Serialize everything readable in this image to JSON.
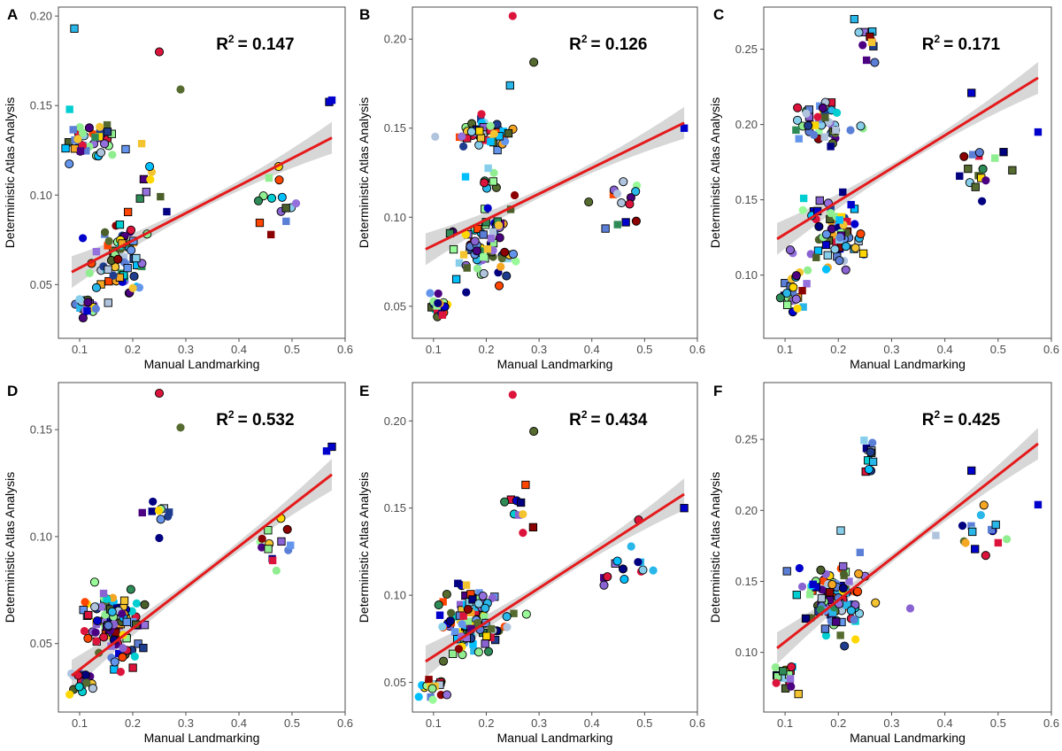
{
  "figure": {
    "colors": {
      "regression_line": "#e41a1c",
      "confidence_band": "#d3d3d3",
      "point_palette": [
        "#29b6e8",
        "#00bfff",
        "#1f3d8f",
        "#000080",
        "#0000cd",
        "#5b7fd6",
        "#8a63d2",
        "#9370db",
        "#b0c4de",
        "#90ee90",
        "#98fb98",
        "#556b2f",
        "#4b5f2a",
        "#ffd700",
        "#f4c430",
        "#f5a623",
        "#ff4500",
        "#dc143c",
        "#8b0000",
        "#4b0082",
        "#00ced1",
        "#6495ed",
        "#87ceeb",
        "#2e8b57"
      ]
    }
  },
  "chart_data": [
    {
      "type": "scatter",
      "panel": "A",
      "xlabel": "Manual Landmarking",
      "ylabel": "Deterministic Atlas Analysis",
      "xlim": [
        0.06,
        0.6
      ],
      "ylim": [
        0.02,
        0.205
      ],
      "x_ticks": [
        0.1,
        0.2,
        0.3,
        0.4,
        0.5,
        0.6
      ],
      "x_tick_labels": [
        "0.1",
        "0.2",
        "0.3",
        "0.4",
        "0.5",
        "0.6"
      ],
      "y_ticks": [
        0.05,
        0.1,
        0.15,
        0.2
      ],
      "y_tick_labels": [
        "0.05",
        "0.10",
        "0.15",
        "0.20"
      ],
      "r2_base": "R",
      "r2_sup": "2",
      "r2_value": "= 0.147",
      "fit": {
        "x0": 0.085,
        "y0": 0.057,
        "x1": 0.575,
        "y1": 0.132
      },
      "clusters": [
        {
          "cx": 0.12,
          "cy": 0.13,
          "sx": 0.04,
          "sy": 0.01,
          "n": 40,
          "ratio_x": 1.0,
          "ratio_y": 1.0
        },
        {
          "cx": 0.18,
          "cy": 0.065,
          "sx": 0.05,
          "sy": 0.018,
          "n": 70
        },
        {
          "cx": 0.11,
          "cy": 0.038,
          "sx": 0.02,
          "sy": 0.006,
          "n": 22
        },
        {
          "cx": 0.46,
          "cy": 0.095,
          "sx": 0.04,
          "sy": 0.015,
          "n": 14
        },
        {
          "cx": 0.22,
          "cy": 0.11,
          "sx": 0.03,
          "sy": 0.02,
          "n": 10
        }
      ],
      "outliers": [
        [
          0.09,
          0.193,
          "#29b6e8",
          "square"
        ],
        [
          0.25,
          0.18,
          "#dc143c",
          "circle"
        ],
        [
          0.29,
          0.159,
          "#556b2f",
          "circle"
        ],
        [
          0.57,
          0.152,
          "#0000cd",
          "square"
        ],
        [
          0.575,
          0.153,
          "#0000cd",
          "square"
        ]
      ]
    },
    {
      "type": "scatter",
      "panel": "B",
      "xlabel": "Manual Landmarking",
      "ylabel": "Deterministic Atlas Analysis",
      "xlim": [
        0.06,
        0.6
      ],
      "ylim": [
        0.032,
        0.218
      ],
      "x_ticks": [
        0.1,
        0.2,
        0.3,
        0.4,
        0.5,
        0.6
      ],
      "x_tick_labels": [
        "0.1",
        "0.2",
        "0.3",
        "0.4",
        "0.5",
        "0.6"
      ],
      "y_ticks": [
        0.05,
        0.1,
        0.15,
        0.2
      ],
      "y_tick_labels": [
        "0.05",
        "0.10",
        "0.15",
        "0.20"
      ],
      "r2_base": "R",
      "r2_sup": "2",
      "r2_value": "= 0.126",
      "fit": {
        "x0": 0.085,
        "y0": 0.082,
        "x1": 0.575,
        "y1": 0.153
      },
      "clusters": [
        {
          "cx": 0.19,
          "cy": 0.148,
          "sx": 0.05,
          "sy": 0.007,
          "n": 45
        },
        {
          "cx": 0.19,
          "cy": 0.085,
          "sx": 0.05,
          "sy": 0.018,
          "n": 70
        },
        {
          "cx": 0.11,
          "cy": 0.05,
          "sx": 0.02,
          "sy": 0.006,
          "n": 20
        },
        {
          "cx": 0.46,
          "cy": 0.11,
          "sx": 0.04,
          "sy": 0.015,
          "n": 14
        },
        {
          "cx": 0.22,
          "cy": 0.12,
          "sx": 0.03,
          "sy": 0.015,
          "n": 10
        }
      ],
      "outliers": [
        [
          0.25,
          0.213,
          "#dc143c",
          "circle"
        ],
        [
          0.245,
          0.174,
          "#29b6e8",
          "square"
        ],
        [
          0.29,
          0.187,
          "#556b2f",
          "circle"
        ],
        [
          0.575,
          0.15,
          "#0000cd",
          "square"
        ]
      ]
    },
    {
      "type": "scatter",
      "panel": "C",
      "xlabel": "Manual Landmarking",
      "ylabel": "Deterministic Atlas Analysis",
      "xlim": [
        0.06,
        0.6
      ],
      "ylim": [
        0.058,
        0.278
      ],
      "x_ticks": [
        0.1,
        0.2,
        0.3,
        0.4,
        0.5,
        0.6
      ],
      "x_tick_labels": [
        "0.1",
        "0.2",
        "0.3",
        "0.4",
        "0.5",
        "0.6"
      ],
      "y_ticks": [
        0.1,
        0.15,
        0.2,
        0.25
      ],
      "y_tick_labels": [
        "0.10",
        "0.15",
        "0.20",
        "0.25"
      ],
      "r2_base": "R",
      "r2_sup": "2",
      "r2_value": "= 0.171",
      "fit": {
        "x0": 0.085,
        "y0": 0.124,
        "x1": 0.575,
        "y1": 0.231
      },
      "clusters": [
        {
          "cx": 0.17,
          "cy": 0.2,
          "sx": 0.04,
          "sy": 0.012,
          "n": 45
        },
        {
          "cx": 0.19,
          "cy": 0.125,
          "sx": 0.05,
          "sy": 0.02,
          "n": 70
        },
        {
          "cx": 0.11,
          "cy": 0.085,
          "sx": 0.02,
          "sy": 0.01,
          "n": 20
        },
        {
          "cx": 0.46,
          "cy": 0.17,
          "sx": 0.05,
          "sy": 0.015,
          "n": 16
        },
        {
          "cx": 0.255,
          "cy": 0.25,
          "sx": 0.015,
          "sy": 0.012,
          "n": 10
        }
      ],
      "outliers": [
        [
          0.23,
          0.27,
          "#29b6e8",
          "square"
        ],
        [
          0.45,
          0.221,
          "#0000cd",
          "square"
        ],
        [
          0.575,
          0.195,
          "#0000cd",
          "square"
        ]
      ]
    },
    {
      "type": "scatter",
      "panel": "D",
      "xlabel": "Manual Landmarking",
      "ylabel": "Deterministic Atlas Analysis",
      "xlim": [
        0.06,
        0.6
      ],
      "ylim": [
        0.018,
        0.172
      ],
      "x_ticks": [
        0.1,
        0.2,
        0.3,
        0.4,
        0.5,
        0.6
      ],
      "x_tick_labels": [
        "0.1",
        "0.2",
        "0.3",
        "0.4",
        "0.5",
        "0.6"
      ],
      "y_ticks": [
        0.05,
        0.1,
        0.15
      ],
      "y_tick_labels": [
        "0.05",
        "0.10",
        "0.15"
      ],
      "r2_base": "R",
      "r2_sup": "2",
      "r2_value": "= 0.532",
      "fit": {
        "x0": 0.085,
        "y0": 0.035,
        "x1": 0.575,
        "y1": 0.129
      },
      "clusters": [
        {
          "cx": 0.17,
          "cy": 0.06,
          "sx": 0.05,
          "sy": 0.014,
          "n": 110
        },
        {
          "cx": 0.1,
          "cy": 0.032,
          "sx": 0.02,
          "sy": 0.006,
          "n": 20
        },
        {
          "cx": 0.46,
          "cy": 0.095,
          "sx": 0.04,
          "sy": 0.012,
          "n": 14
        },
        {
          "cx": 0.25,
          "cy": 0.112,
          "sx": 0.02,
          "sy": 0.01,
          "n": 10
        }
      ],
      "outliers": [
        [
          0.25,
          0.167,
          "#dc143c",
          "circle"
        ],
        [
          0.29,
          0.151,
          "#556b2f",
          "circle"
        ],
        [
          0.575,
          0.142,
          "#0000cd",
          "square"
        ],
        [
          0.565,
          0.14,
          "#0000cd",
          "square"
        ]
      ]
    },
    {
      "type": "scatter",
      "panel": "E",
      "xlabel": "Manual Landmarking",
      "ylabel": "Deterministic Atlas Analysis",
      "xlim": [
        0.06,
        0.6
      ],
      "ylim": [
        0.033,
        0.222
      ],
      "x_ticks": [
        0.1,
        0.2,
        0.3,
        0.4,
        0.5,
        0.6
      ],
      "x_tick_labels": [
        "0.1",
        "0.2",
        "0.3",
        "0.4",
        "0.5",
        "0.6"
      ],
      "y_ticks": [
        0.05,
        0.1,
        0.15,
        0.2
      ],
      "y_tick_labels": [
        "0.05",
        "0.10",
        "0.15",
        "0.20"
      ],
      "r2_base": "R",
      "r2_sup": "2",
      "r2_value": "= 0.434",
      "fit": {
        "x0": 0.085,
        "y0": 0.062,
        "x1": 0.575,
        "y1": 0.158
      },
      "clusters": [
        {
          "cx": 0.18,
          "cy": 0.085,
          "sx": 0.05,
          "sy": 0.016,
          "n": 110
        },
        {
          "cx": 0.1,
          "cy": 0.048,
          "sx": 0.02,
          "sy": 0.006,
          "n": 20
        },
        {
          "cx": 0.46,
          "cy": 0.115,
          "sx": 0.04,
          "sy": 0.012,
          "n": 14
        },
        {
          "cx": 0.26,
          "cy": 0.15,
          "sx": 0.02,
          "sy": 0.012,
          "n": 10
        }
      ],
      "outliers": [
        [
          0.25,
          0.215,
          "#dc143c",
          "circle"
        ],
        [
          0.29,
          0.194,
          "#556b2f",
          "circle"
        ],
        [
          0.575,
          0.15,
          "#0000cd",
          "square"
        ]
      ]
    },
    {
      "type": "scatter",
      "panel": "F",
      "xlabel": "Manual Landmarking",
      "ylabel": "Deterministic Atlas Analysis",
      "xlim": [
        0.06,
        0.6
      ],
      "ylim": [
        0.058,
        0.29
      ],
      "x_ticks": [
        0.1,
        0.2,
        0.3,
        0.4,
        0.5,
        0.6
      ],
      "x_tick_labels": [
        "0.1",
        "0.2",
        "0.3",
        "0.4",
        "0.5",
        "0.6"
      ],
      "y_ticks": [
        0.1,
        0.15,
        0.2,
        0.25
      ],
      "y_tick_labels": [
        "0.10",
        "0.15",
        "0.20",
        "0.25"
      ],
      "r2_base": "R",
      "r2_sup": "2",
      "r2_value": "= 0.425",
      "fit": {
        "x0": 0.085,
        "y0": 0.103,
        "x1": 0.575,
        "y1": 0.247
      },
      "clusters": [
        {
          "cx": 0.19,
          "cy": 0.14,
          "sx": 0.05,
          "sy": 0.02,
          "n": 110
        },
        {
          "cx": 0.1,
          "cy": 0.085,
          "sx": 0.02,
          "sy": 0.01,
          "n": 20
        },
        {
          "cx": 0.47,
          "cy": 0.185,
          "sx": 0.05,
          "sy": 0.015,
          "n": 16
        },
        {
          "cx": 0.255,
          "cy": 0.24,
          "sx": 0.015,
          "sy": 0.02,
          "n": 12
        }
      ],
      "outliers": [
        [
          0.45,
          0.228,
          "#0000cd",
          "square"
        ],
        [
          0.575,
          0.204,
          "#0000cd",
          "square"
        ],
        [
          0.335,
          0.131,
          "#8a63d2",
          "circle"
        ]
      ]
    }
  ]
}
